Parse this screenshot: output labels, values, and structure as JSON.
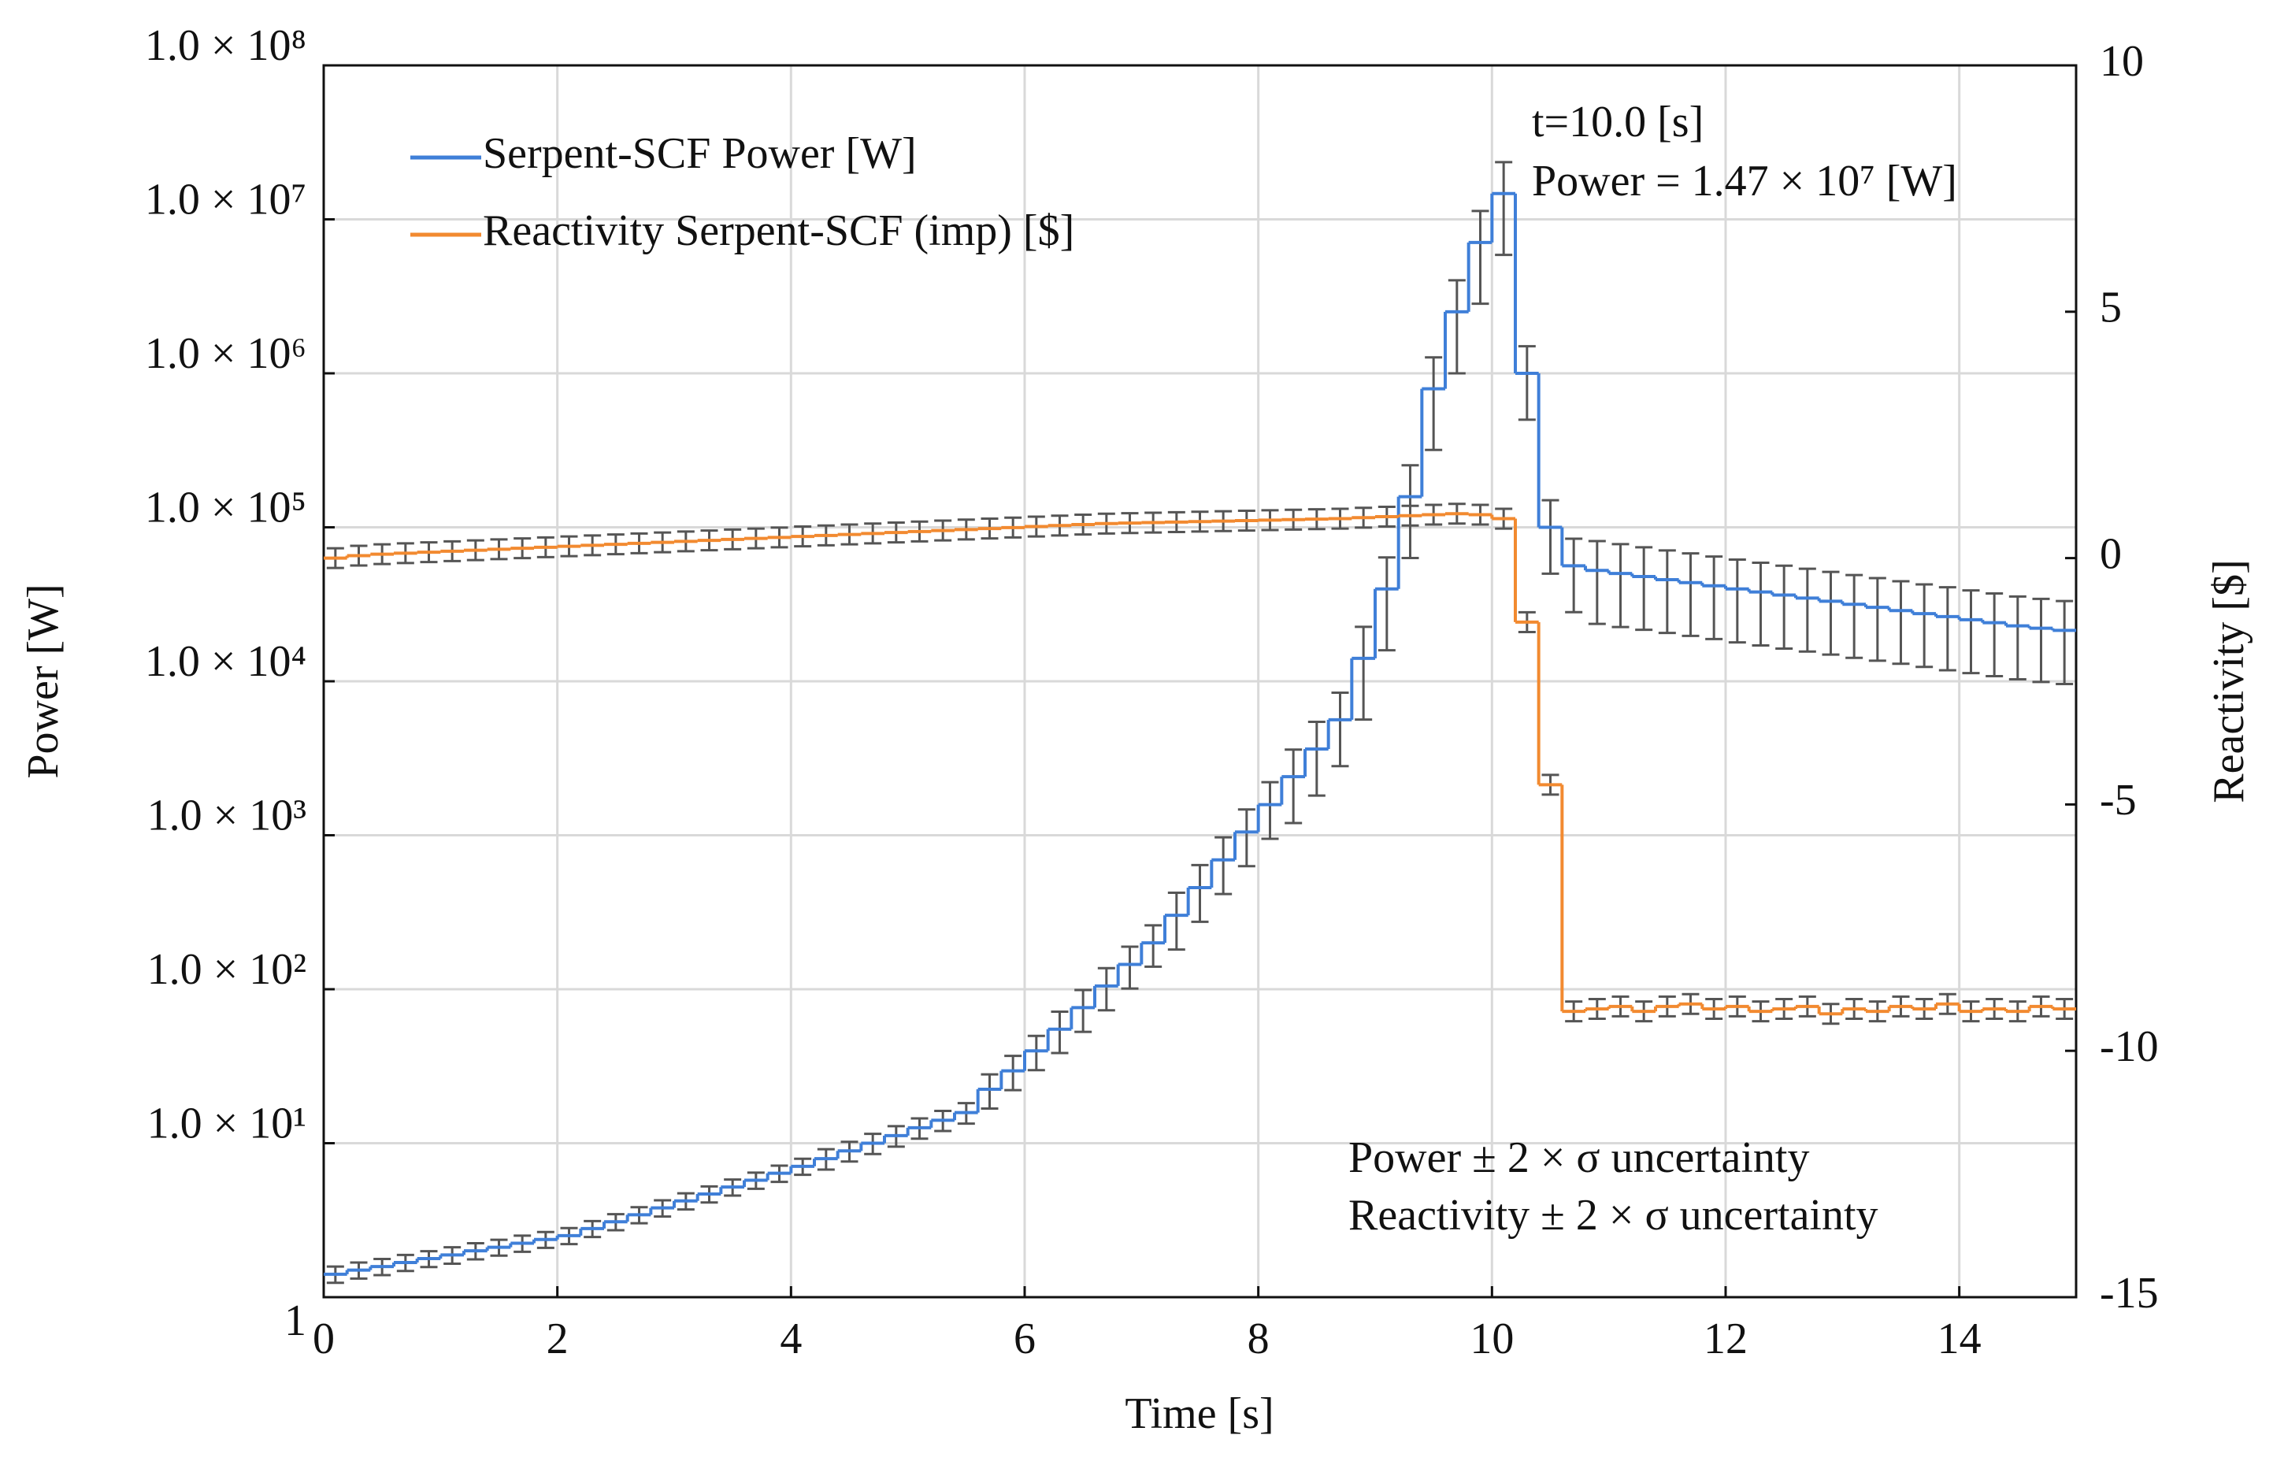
{
  "chart_data": {
    "type": "step",
    "xlabel": "Time [s]",
    "ylabel": "Power [W]",
    "y2label": "Reactivity [$]",
    "xlim": [
      0,
      15
    ],
    "xticks": [
      0,
      2,
      4,
      6,
      8,
      10,
      12,
      14
    ],
    "ylim": [
      1,
      100000000
    ],
    "yscale": "log",
    "yticks": [
      1,
      {
        "value": 10,
        "label": "1.0 × 10¹"
      },
      {
        "value": 100,
        "label": "1.0 × 10²"
      },
      {
        "value": 1000,
        "label": "1.0 × 10³"
      },
      {
        "value": 10000,
        "label": "1.0 × 10⁴"
      },
      {
        "value": 100000,
        "label": "1.0 × 10⁵"
      },
      {
        "value": 1000000,
        "label": "1.0 × 10⁶"
      },
      {
        "value": 10000000,
        "label": "1.0 × 10⁷"
      },
      {
        "value": 100000000,
        "label": "1.0 × 10⁸"
      }
    ],
    "y2lim": [
      -15,
      10
    ],
    "y2ticks": [
      -15,
      -10,
      -5,
      0,
      5,
      10
    ],
    "grid": true,
    "legend": "upper left",
    "error_color": "#555555",
    "annotations": [
      "t=10.0 [s]",
      "Power = 1.47 × 10⁷ [W]",
      "Power ± 2 × σ uncertainty",
      "Reactivity ± 2 × σ uncertainty"
    ],
    "x": [
      0,
      0.2,
      0.4,
      0.6,
      0.8,
      1,
      1.2,
      1.4,
      1.6,
      1.8,
      2,
      2.2,
      2.4,
      2.6,
      2.8,
      3,
      3.2,
      3.4,
      3.6,
      3.8,
      4,
      4.2,
      4.4,
      4.6,
      4.8,
      5,
      5.2,
      5.4,
      5.6,
      5.8,
      6,
      6.2,
      6.4,
      6.6,
      6.8,
      7,
      7.2,
      7.4,
      7.6,
      7.8,
      8,
      8.2,
      8.4,
      8.6,
      8.8,
      9,
      9.2,
      9.4,
      9.6,
      9.8,
      10,
      10.2,
      10.4,
      10.6,
      10.8,
      11,
      11.2,
      11.4,
      11.6,
      11.8,
      12,
      12.2,
      12.4,
      12.6,
      12.8,
      13,
      13.2,
      13.4,
      13.6,
      13.8,
      14,
      14.2,
      14.4,
      14.6,
      14.8
    ],
    "series": [
      {
        "name": "Serpent-SCF Power [W]",
        "color": "#3f7fd8",
        "values": [
          1.41,
          1.5,
          1.58,
          1.68,
          1.78,
          1.88,
          2.0,
          2.11,
          2.24,
          2.37,
          2.51,
          2.79,
          3.09,
          3.43,
          3.8,
          4.22,
          4.68,
          5.19,
          5.75,
          6.38,
          7.08,
          7.94,
          8.91,
          10.0,
          11.2,
          12.6,
          14.1,
          15.8,
          22.4,
          29.5,
          39.8,
          55,
          75.9,
          105,
          145,
          200,
          302,
          457,
          692,
          1050,
          1580,
          2400,
          3630,
          5620,
          14100,
          39800,
          158000,
          794000,
          2510000,
          7080000,
          14700000,
          1000000,
          100000,
          56200,
          52500,
          50100,
          47900,
          45700,
          43700,
          41700,
          39800,
          38000,
          36300,
          34700,
          33100,
          31600,
          30200,
          28800,
          27500,
          26300,
          25100,
          24000,
          22900,
          22100,
          21400
        ],
        "errors": [
          0.17,
          0.18,
          0.19,
          0.2,
          0.21,
          0.23,
          0.24,
          0.25,
          0.27,
          0.28,
          0.3,
          0.33,
          0.37,
          0.41,
          0.46,
          0.51,
          0.56,
          0.62,
          0.69,
          0.77,
          0.85,
          1.2,
          1.3,
          1.5,
          1.7,
          1.9,
          2.1,
          2.4,
          5.6,
          7.4,
          10,
          16.5,
          23,
          32,
          44,
          60,
          121,
          183,
          277,
          420,
          632,
          1200,
          1820,
          2810,
          8460,
          23900,
          94800,
          476000,
          1510000,
          4250000,
          8820000,
          500000,
          50000,
          28100,
          28900,
          27600,
          26300,
          25100,
          24000,
          22900,
          21900,
          20900,
          20000,
          19100,
          18200,
          17400,
          16600,
          15800,
          15100,
          14500,
          13800,
          13200,
          12600,
          12200,
          11800
        ]
      },
      {
        "name": "Reactivity Serpent-SCF (imp) [$]",
        "color": "#f28a30",
        "axis": "y2",
        "values": [
          0.0,
          0.05,
          0.08,
          0.1,
          0.12,
          0.14,
          0.16,
          0.18,
          0.2,
          0.22,
          0.24,
          0.26,
          0.28,
          0.3,
          0.32,
          0.34,
          0.36,
          0.38,
          0.4,
          0.42,
          0.44,
          0.46,
          0.48,
          0.5,
          0.52,
          0.54,
          0.56,
          0.58,
          0.6,
          0.62,
          0.64,
          0.66,
          0.68,
          0.7,
          0.71,
          0.72,
          0.73,
          0.74,
          0.75,
          0.76,
          0.77,
          0.78,
          0.79,
          0.8,
          0.82,
          0.84,
          0.86,
          0.88,
          0.9,
          0.88,
          0.8,
          -1.3,
          -4.6,
          -9.2,
          -9.15,
          -9.1,
          -9.2,
          -9.1,
          -9.05,
          -9.15,
          -9.1,
          -9.2,
          -9.15,
          -9.1,
          -9.25,
          -9.15,
          -9.2,
          -9.1,
          -9.15,
          -9.05,
          -9.2,
          -9.15,
          -9.2,
          -9.1,
          -9.15
        ],
        "error": 0.2
      }
    ]
  }
}
